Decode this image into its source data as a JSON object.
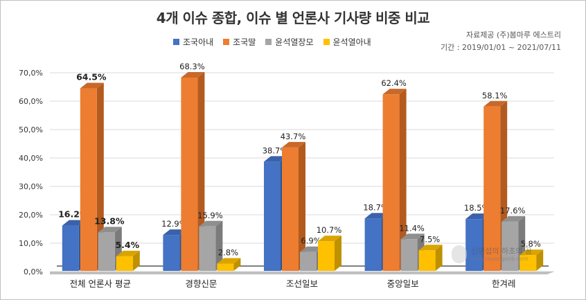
{
  "header": {
    "title": "4개 이슈 종합, 이슈 별 언론사 기사량 비중 비교",
    "source_line": "자료제공 (주)봄마루 에스트리",
    "period_line": "기간 : 2019/01/01 ~ 2021/07/11"
  },
  "watermark": {
    "name": "신명섭의 하초의 꿈",
    "url": "www.myongsob.com"
  },
  "colors": {
    "series": [
      "#4472c4",
      "#ed7d31",
      "#a5a5a5",
      "#ffc000"
    ],
    "series_dark": [
      "#2f528f",
      "#b35a1f",
      "#7b7b7b",
      "#bf9000"
    ],
    "series_side": [
      "#3a62aa",
      "#c8692a",
      "#8f8f8f",
      "#d9a400"
    ],
    "gridline": "#d9d9d9",
    "floor": "#bfbfbf"
  },
  "chart_data": {
    "type": "bar",
    "title": "4개 이슈 종합, 이슈 별 언론사 기사량 비중 비교",
    "categories": [
      "전체 언론사 평균",
      "경향신문",
      "조선일보",
      "중앙일보",
      "한겨레"
    ],
    "series": [
      {
        "name": "조국아내",
        "values": [
          16.2,
          12.9,
          38.7,
          18.7,
          18.5
        ],
        "labels": [
          "16.2%",
          "12.9%",
          "38.7%",
          "18.7%",
          "18.5%"
        ]
      },
      {
        "name": "조국딸",
        "values": [
          64.5,
          68.3,
          43.7,
          62.4,
          58.1
        ],
        "labels": [
          "64.5%",
          "68.3%",
          "43.7%",
          "62.4%",
          "58.1%"
        ]
      },
      {
        "name": "윤석열장모",
        "values": [
          13.8,
          15.9,
          6.9,
          11.4,
          17.6
        ],
        "labels": [
          "13.8%",
          "15.9%",
          "6.9%",
          "11.4%",
          "17.6%"
        ]
      },
      {
        "name": "윤석열아내",
        "values": [
          5.4,
          2.8,
          10.7,
          7.5,
          5.8
        ],
        "labels": [
          "5.4%",
          "2.8%",
          "10.7%",
          "7.5%",
          "5.8%"
        ]
      }
    ],
    "bold_label_category": "전체 언론사 평균",
    "ylim": [
      0,
      70
    ],
    "yticks": [
      "0,0%",
      "10,0%",
      "20,0%",
      "30,0%",
      "40,0%",
      "50,0%",
      "60,0%",
      "70,0%"
    ],
    "grid": true,
    "legend_position": "top"
  }
}
